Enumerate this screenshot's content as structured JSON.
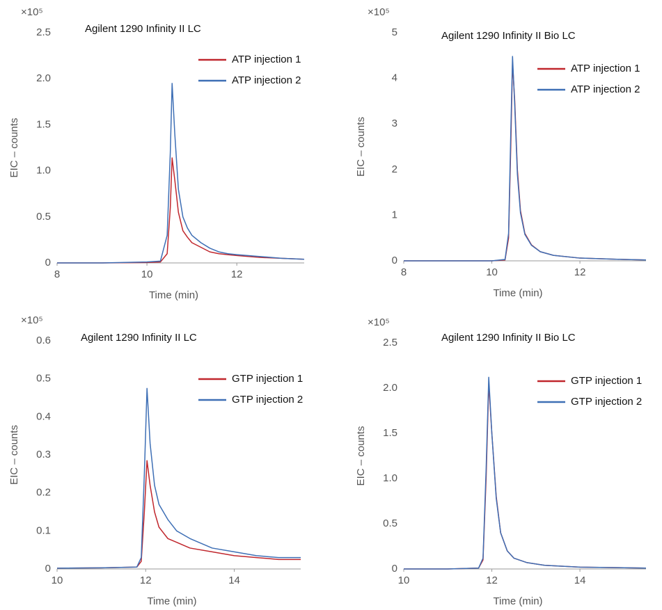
{
  "chart_data": [
    {
      "type": "line",
      "title": "Agilent 1290 Infinity II LC",
      "y_multiplier": "×10⁵",
      "ylabel": "EIC – counts",
      "xlabel": "Time (min)",
      "x": [
        8,
        9,
        10,
        10.3,
        10.45,
        10.52,
        10.56,
        10.62,
        10.7,
        10.8,
        10.9,
        11,
        11.2,
        11.4,
        11.6,
        11.8,
        12,
        12.5,
        13,
        13.5
      ],
      "series": [
        {
          "name": "ATP injection 1",
          "color": "#c0272d",
          "values": [
            0,
            0,
            0.005,
            0.01,
            0.1,
            0.6,
            1.14,
            0.9,
            0.55,
            0.35,
            0.28,
            0.22,
            0.17,
            0.12,
            0.1,
            0.09,
            0.08,
            0.06,
            0.05,
            0.04
          ]
        },
        {
          "name": "ATP injection 2",
          "color": "#3e6fb5",
          "values": [
            0,
            0,
            0.01,
            0.02,
            0.3,
            1.2,
            1.95,
            1.4,
            0.8,
            0.5,
            0.38,
            0.3,
            0.22,
            0.16,
            0.12,
            0.1,
            0.09,
            0.07,
            0.05,
            0.04
          ]
        }
      ],
      "xlim": [
        8,
        13.5
      ],
      "xticks": [
        8,
        10,
        12
      ],
      "ylim": [
        0,
        2.5
      ],
      "yticks": [
        0,
        0.5,
        {
          "value": 1,
          "label": "1.0"
        },
        1.5,
        {
          "value": 2,
          "label": "2.0"
        },
        2.5
      ],
      "legend": "upper right"
    },
    {
      "type": "line",
      "title": "Agilent 1290 Infinity II Bio LC",
      "y_multiplier": "×10⁵",
      "ylabel": "EIC – counts",
      "xlabel": "Time (min)",
      "x": [
        8,
        9,
        10,
        10.3,
        10.38,
        10.43,
        10.47,
        10.52,
        10.58,
        10.65,
        10.75,
        10.9,
        11.1,
        11.4,
        12,
        13,
        13.5
      ],
      "series": [
        {
          "name": "ATP injection 1",
          "color": "#c0272d",
          "values": [
            0,
            0,
            0,
            0.02,
            0.5,
            2.5,
            4.35,
            3.5,
            2,
            1.1,
            0.6,
            0.35,
            0.2,
            0.12,
            0.06,
            0.03,
            0.02
          ]
        },
        {
          "name": "ATP injection 2",
          "color": "#3e6fb5",
          "values": [
            0,
            0,
            0,
            0.03,
            0.6,
            2.8,
            4.48,
            3.4,
            1.9,
            1.05,
            0.58,
            0.34,
            0.2,
            0.12,
            0.06,
            0.03,
            0.02
          ]
        }
      ],
      "xlim": [
        8,
        13.5
      ],
      "xticks": [
        8,
        10,
        12
      ],
      "ylim": [
        0,
        5
      ],
      "yticks": [
        0,
        1,
        2,
        3,
        4,
        5
      ],
      "legend": "upper right"
    },
    {
      "type": "line",
      "title": "Agilent 1290 Infinity II LC",
      "y_multiplier": "×10⁵",
      "ylabel": "EIC – counts",
      "xlabel": "Time (min)",
      "x": [
        10,
        11,
        11.8,
        11.9,
        11.97,
        12.03,
        12.1,
        12.2,
        12.3,
        12.5,
        12.7,
        13,
        13.5,
        14,
        14.5,
        15,
        15.5
      ],
      "series": [
        {
          "name": "GTP injection 1",
          "color": "#c0272d",
          "values": [
            0.002,
            0.003,
            0.005,
            0.02,
            0.15,
            0.285,
            0.22,
            0.15,
            0.11,
            0.08,
            0.07,
            0.055,
            0.045,
            0.035,
            0.03,
            0.025,
            0.025
          ]
        },
        {
          "name": "GTP injection 2",
          "color": "#3e6fb5",
          "values": [
            0.002,
            0.003,
            0.005,
            0.03,
            0.25,
            0.475,
            0.33,
            0.22,
            0.17,
            0.13,
            0.1,
            0.08,
            0.055,
            0.045,
            0.035,
            0.03,
            0.03
          ]
        }
      ],
      "xlim": [
        10,
        15.5
      ],
      "xticks": [
        10,
        12,
        14
      ],
      "ylim": [
        0,
        0.6
      ],
      "yticks": [
        0,
        0.1,
        0.2,
        0.3,
        0.4,
        0.5,
        0.6
      ],
      "legend": "upper right"
    },
    {
      "type": "line",
      "title": "Agilent 1290 Infinity II Bio LC",
      "y_multiplier": "×10⁵",
      "ylabel": "EIC – counts",
      "xlabel": "Time (min)",
      "x": [
        10,
        11,
        11.7,
        11.8,
        11.87,
        11.93,
        12,
        12.1,
        12.2,
        12.35,
        12.5,
        12.8,
        13.2,
        14,
        15.5
      ],
      "series": [
        {
          "name": "GTP injection 1",
          "color": "#c0272d",
          "values": [
            0,
            0,
            0.01,
            0.1,
            1.0,
            2.05,
            1.5,
            0.8,
            0.4,
            0.2,
            0.12,
            0.07,
            0.04,
            0.02,
            0.01
          ]
        },
        {
          "name": "GTP injection 2",
          "color": "#3e6fb5",
          "values": [
            0,
            0,
            0.01,
            0.12,
            1.1,
            2.12,
            1.5,
            0.78,
            0.4,
            0.2,
            0.12,
            0.07,
            0.04,
            0.02,
            0.01
          ]
        }
      ],
      "xlim": [
        10,
        15.5
      ],
      "xticks": [
        10,
        12,
        14
      ],
      "ylim": [
        0,
        2.5
      ],
      "yticks": [
        0,
        0.5,
        {
          "value": 1,
          "label": "1.0"
        },
        1.5,
        {
          "value": 2,
          "label": "2.0"
        },
        2.5
      ],
      "legend": "upper right"
    }
  ]
}
